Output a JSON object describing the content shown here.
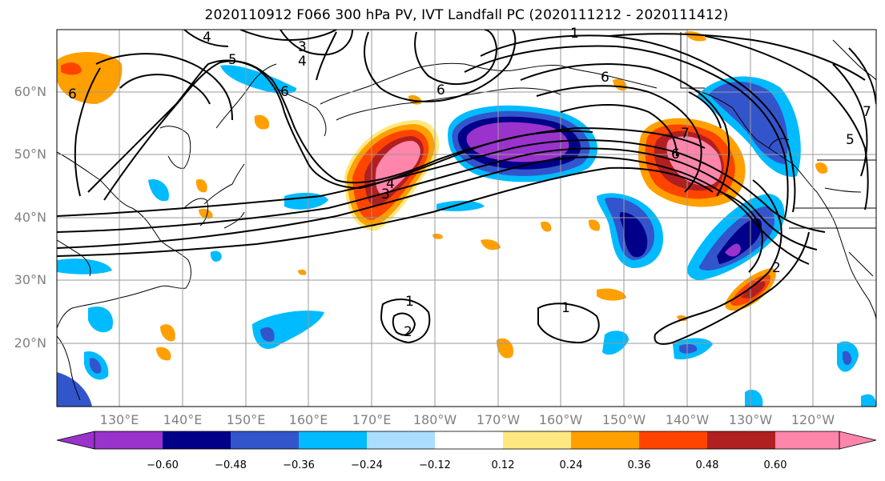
{
  "title": "2020110912 F066 300 hPa PV, IVT Landfall PC (2020111212 - 2020111412)",
  "lat_labels": [
    "60°N",
    "50°N",
    "40°N",
    "30°N",
    "20°N"
  ],
  "lon_labels": [
    "130°E",
    "140°E",
    "150°E",
    "160°E",
    "170°E",
    "180°W",
    "170°W",
    "160°W",
    "150°W",
    "140°W",
    "130°W",
    "120°W"
  ],
  "colorbar": {
    "colors": [
      "#9933cc",
      "#000088",
      "#3355cc",
      "#00bbff",
      "#aaddff",
      "#ffffff",
      "#ffe880",
      "#ffa000",
      "#ff4400",
      "#b02020",
      "#ff85aa"
    ],
    "tick_labels": [
      "−0.60",
      "−0.48",
      "−0.36",
      "−0.24",
      "−0.12",
      "0.12",
      "0.24",
      "0.36",
      "0.48",
      "0.60"
    ]
  },
  "contour_labels": [
    "1",
    "1",
    "1",
    "2",
    "2",
    "3",
    "3",
    "4",
    "4",
    "4",
    "5",
    "5",
    "6",
    "6",
    "6",
    "6",
    "6",
    "7",
    "7"
  ]
}
